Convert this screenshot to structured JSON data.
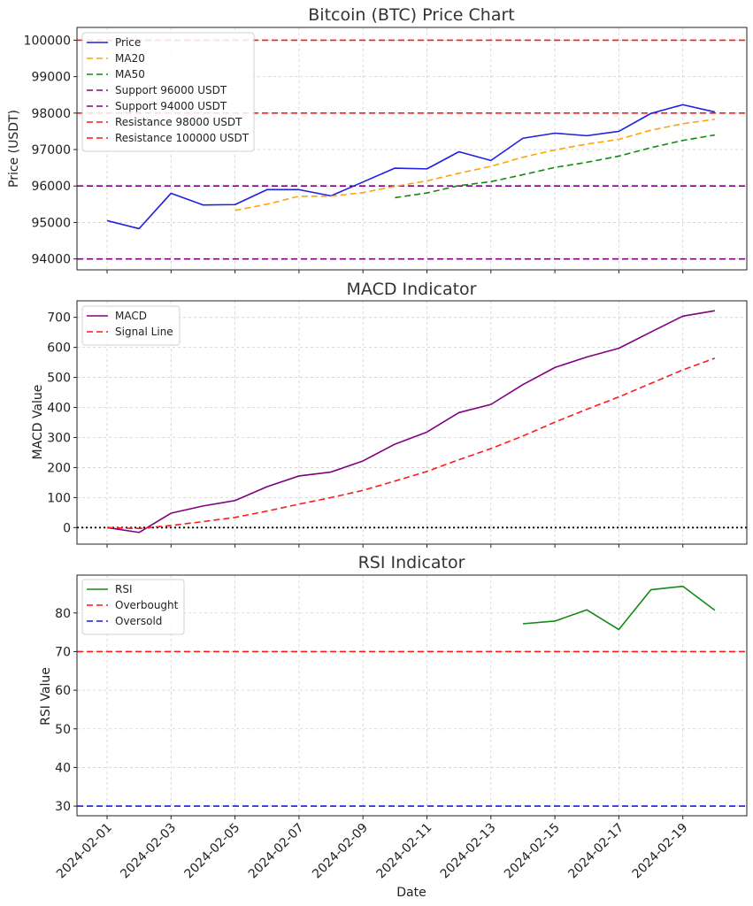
{
  "colors": {
    "price": "#1f1fe0",
    "ma20": "#ffa500",
    "ma50": "#138a13",
    "support": "#800080",
    "resistance": "#ff1a1a",
    "macd": "#800080",
    "signal": "#ff1a1a",
    "rsi": "#138a13",
    "overbought": "#ff1a1a",
    "oversold": "#1a1ae6",
    "zero_line": "#000000"
  },
  "chart_data": [
    {
      "type": "line",
      "title": "Bitcoin (BTC) Price Chart",
      "ylabel": "Price (USDT)",
      "xlabel": "",
      "ylim": [
        93700,
        100350
      ],
      "yticks": [
        94000,
        95000,
        96000,
        97000,
        98000,
        99000,
        100000
      ],
      "grid": true,
      "legend_position": "top-left",
      "x": [
        "2024-02-01",
        "2024-02-02",
        "2024-02-03",
        "2024-02-04",
        "2024-02-05",
        "2024-02-06",
        "2024-02-07",
        "2024-02-08",
        "2024-02-09",
        "2024-02-10",
        "2024-02-11",
        "2024-02-12",
        "2024-02-13",
        "2024-02-14",
        "2024-02-15",
        "2024-02-16",
        "2024-02-17",
        "2024-02-18",
        "2024-02-19",
        "2024-02-20"
      ],
      "series": [
        {
          "name": "Price",
          "style": "solid",
          "color_key": "price",
          "values": [
            95050,
            94830,
            95800,
            95480,
            95490,
            95900,
            95900,
            95730,
            96110,
            96490,
            96470,
            96940,
            96700,
            97310,
            97450,
            97380,
            97500,
            97990,
            98230,
            98030
          ]
        },
        {
          "name": "MA20",
          "style": "dashed",
          "color_key": "ma20",
          "values": [
            null,
            null,
            null,
            null,
            95330,
            95500,
            95720,
            95720,
            95820,
            95990,
            96140,
            96350,
            96540,
            96790,
            96990,
            97150,
            97280,
            97530,
            97710,
            97830
          ]
        },
        {
          "name": "MA50",
          "style": "dashed",
          "color_key": "ma50",
          "values": [
            null,
            null,
            null,
            null,
            null,
            null,
            null,
            null,
            null,
            95680,
            95810,
            96010,
            96120,
            96310,
            96510,
            96650,
            96820,
            97050,
            97250,
            97400
          ]
        }
      ],
      "hlines": [
        {
          "name": "Support 96000 USDT",
          "value": 96000,
          "style": "dashed",
          "color_key": "support"
        },
        {
          "name": "Support 94000 USDT",
          "value": 94000,
          "style": "dashed",
          "color_key": "support"
        },
        {
          "name": "Resistance 98000 USDT",
          "value": 98000,
          "style": "dashed",
          "color_key": "resistance"
        },
        {
          "name": "Resistance 100000 USDT",
          "value": 100000,
          "style": "dashed",
          "color_key": "resistance"
        }
      ]
    },
    {
      "type": "line",
      "title": "MACD Indicator",
      "ylabel": "MACD Value",
      "xlabel": "",
      "ylim": [
        -55,
        755
      ],
      "yticks": [
        0,
        100,
        200,
        300,
        400,
        500,
        600,
        700
      ],
      "grid": true,
      "legend_position": "top-left",
      "x": [
        "2024-02-01",
        "2024-02-02",
        "2024-02-03",
        "2024-02-04",
        "2024-02-05",
        "2024-02-06",
        "2024-02-07",
        "2024-02-08",
        "2024-02-09",
        "2024-02-10",
        "2024-02-11",
        "2024-02-12",
        "2024-02-13",
        "2024-02-14",
        "2024-02-15",
        "2024-02-16",
        "2024-02-17",
        "2024-02-18",
        "2024-02-19",
        "2024-02-20"
      ],
      "series": [
        {
          "name": "MACD",
          "style": "solid",
          "color_key": "macd",
          "values": [
            0,
            -16,
            48,
            72,
            90,
            136,
            172,
            185,
            222,
            278,
            318,
            383,
            410,
            476,
            533,
            568,
            597,
            651,
            704,
            722
          ]
        },
        {
          "name": "Signal Line",
          "style": "dashed",
          "color_key": "signal",
          "values": [
            0,
            -3,
            7,
            20,
            34,
            55,
            78,
            100,
            124,
            155,
            187,
            226,
            263,
            305,
            351,
            394,
            435,
            480,
            525,
            564
          ]
        }
      ],
      "hlines": [
        {
          "name": "",
          "value": 0,
          "style": "dotted",
          "color_key": "zero_line",
          "in_legend": false
        }
      ]
    },
    {
      "type": "line",
      "title": "RSI Indicator",
      "ylabel": "RSI Value",
      "xlabel": "Date",
      "ylim": [
        27.5,
        89.8
      ],
      "yticks": [
        30,
        40,
        50,
        60,
        70,
        80
      ],
      "grid": true,
      "legend_position": "top-left",
      "x": [
        "2024-02-01",
        "2024-02-02",
        "2024-02-03",
        "2024-02-04",
        "2024-02-05",
        "2024-02-06",
        "2024-02-07",
        "2024-02-08",
        "2024-02-09",
        "2024-02-10",
        "2024-02-11",
        "2024-02-12",
        "2024-02-13",
        "2024-02-14",
        "2024-02-15",
        "2024-02-16",
        "2024-02-17",
        "2024-02-18",
        "2024-02-19",
        "2024-02-20"
      ],
      "xticks": [
        "2024-02-01",
        "2024-02-03",
        "2024-02-05",
        "2024-02-07",
        "2024-02-09",
        "2024-02-11",
        "2024-02-13",
        "2024-02-15",
        "2024-02-17",
        "2024-02-19"
      ],
      "series": [
        {
          "name": "RSI",
          "style": "solid",
          "color_key": "rsi",
          "values": [
            null,
            null,
            null,
            null,
            null,
            null,
            null,
            null,
            null,
            null,
            null,
            null,
            null,
            77.2,
            77.9,
            80.8,
            75.7,
            86.0,
            86.9,
            80.7
          ]
        }
      ],
      "hlines": [
        {
          "name": "Overbought",
          "value": 70,
          "style": "dashed",
          "color_key": "overbought"
        },
        {
          "name": "Oversold",
          "value": 30,
          "style": "dashed",
          "color_key": "oversold"
        }
      ]
    }
  ]
}
